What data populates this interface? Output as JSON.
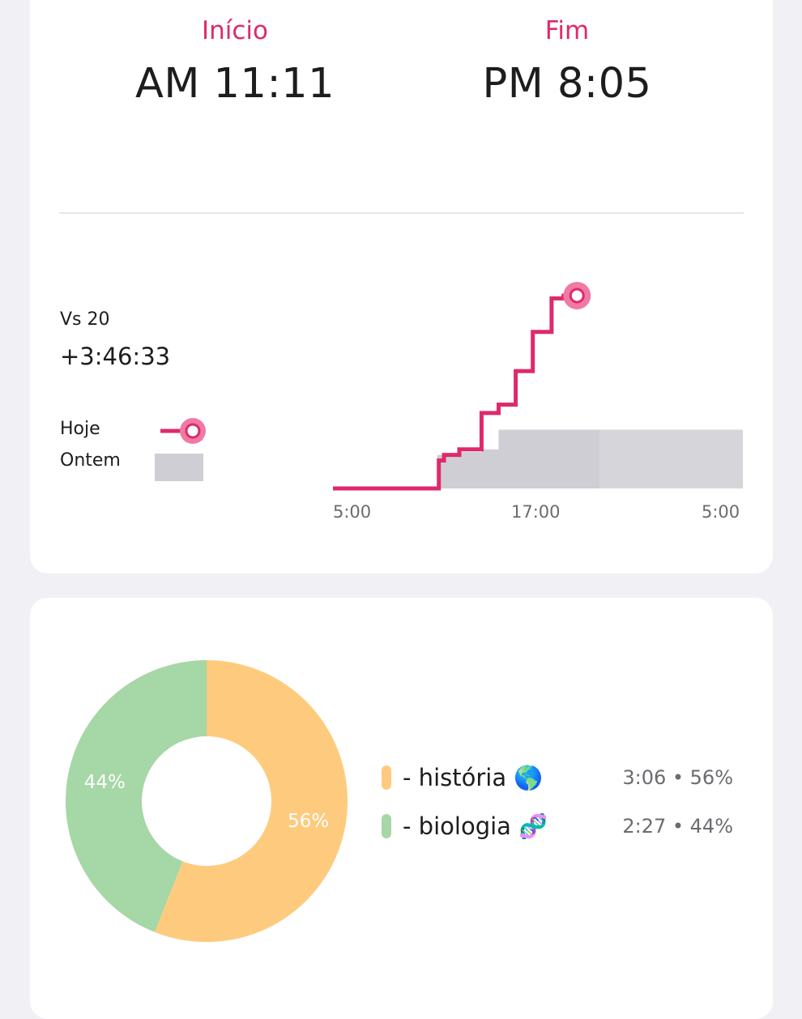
{
  "session": {
    "start_label": "Início",
    "start_time": "AM 11:11",
    "end_label": "Fim",
    "end_time": "PM 8:05"
  },
  "comparison": {
    "vs_label": "Vs 20",
    "delta": "+3:46:33",
    "legend_today": "Hoje",
    "legend_yesterday": "Ontem"
  },
  "colors": {
    "accent": "#de2a6c",
    "yesterday": "#cfced4",
    "historia": "#fecb7e",
    "biologia": "#a6d7a6"
  },
  "chart_data": [
    {
      "type": "line",
      "title": "",
      "x_ticks": [
        "5:00",
        "17:00",
        "5:00"
      ],
      "x_range_hours": [
        5,
        29
      ],
      "series": [
        {
          "name": "Hoje",
          "step": true,
          "points": [
            [
              5,
              0
            ],
            [
              11.2,
              0
            ],
            [
              11.2,
              10
            ],
            [
              11.5,
              10
            ],
            [
              11.5,
              12
            ],
            [
              12.4,
              12
            ],
            [
              12.4,
              14
            ],
            [
              13.7,
              14
            ],
            [
              13.7,
              27
            ],
            [
              14.7,
              27
            ],
            [
              14.7,
              30
            ],
            [
              15.7,
              30
            ],
            [
              15.7,
              42
            ],
            [
              16.7,
              42
            ],
            [
              16.7,
              56
            ],
            [
              17.8,
              56
            ],
            [
              17.8,
              68
            ],
            [
              18.5,
              68
            ],
            [
              18.5,
              69
            ],
            [
              19.1,
              69
            ]
          ]
        },
        {
          "name": "Ontem",
          "step": true,
          "points": [
            [
              5,
              0
            ],
            [
              11.1,
              0
            ],
            [
              11.1,
              12
            ],
            [
              12.4,
              12
            ],
            [
              12.4,
              13
            ],
            [
              13.7,
              13
            ],
            [
              13.7,
              14
            ],
            [
              14.7,
              14
            ],
            [
              14.7,
              21
            ],
            [
              20.6,
              21
            ],
            [
              20.6,
              21
            ],
            [
              29,
              21
            ]
          ]
        }
      ]
    },
    {
      "type": "pie",
      "donut": true,
      "labels": [
        "história",
        "biologia"
      ],
      "values": [
        56,
        44
      ],
      "slice_labels": [
        "56%",
        "44%"
      ],
      "legend": [
        {
          "name": "- história 🌎",
          "stat": "3:06 • 56%"
        },
        {
          "name": "- biologia 🧬",
          "stat": "2:27 • 44%"
        }
      ]
    }
  ]
}
